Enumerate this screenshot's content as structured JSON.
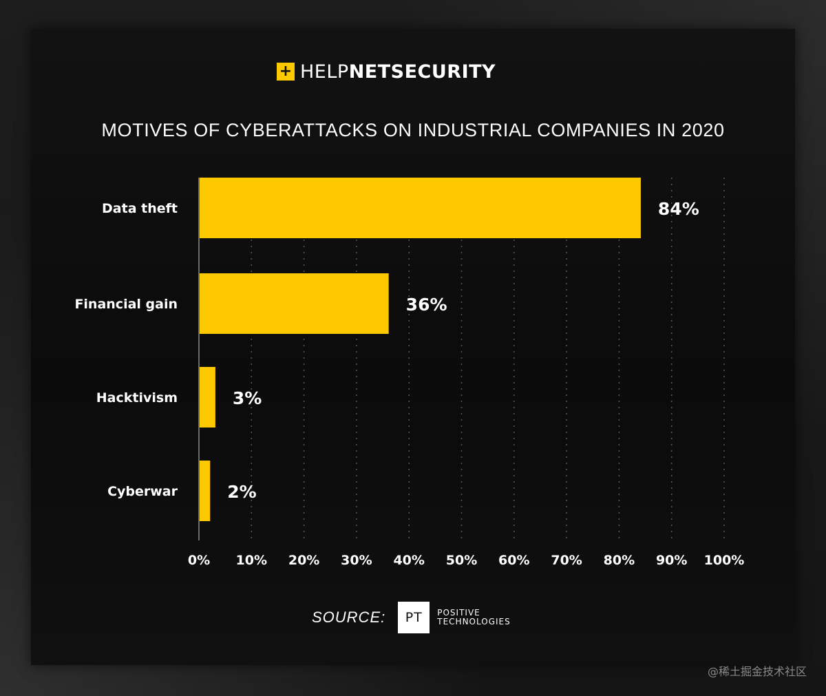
{
  "logo": {
    "mark": "+",
    "text_part1": "HELP",
    "text_part2": "NET",
    "text_part3": "SECURITY"
  },
  "chart_data": {
    "type": "bar",
    "orientation": "horizontal",
    "title": "MOTIVES OF CYBERATTACKS ON INDUSTRIAL COMPANIES IN 2020",
    "categories": [
      "Data theft",
      "Financial gain",
      "Hacktivism",
      "Cyberwar"
    ],
    "values": [
      84,
      36,
      3,
      2
    ],
    "value_labels": [
      "84%",
      "36%",
      "3%",
      "2%"
    ],
    "xlim": [
      0,
      100
    ],
    "x_ticks": [
      "0%",
      "10%",
      "20%",
      "30%",
      "40%",
      "50%",
      "60%",
      "70%",
      "80%",
      "90%",
      "100%"
    ],
    "grid": "vertical dotted",
    "bar_color": "#ffc900"
  },
  "source": {
    "label": "SOURCE:",
    "logo_mark": "PT",
    "name_line1": "POSITIVE",
    "name_line2": "TECHNOLOGIES"
  },
  "watermark": "@稀土掘金技术社区"
}
